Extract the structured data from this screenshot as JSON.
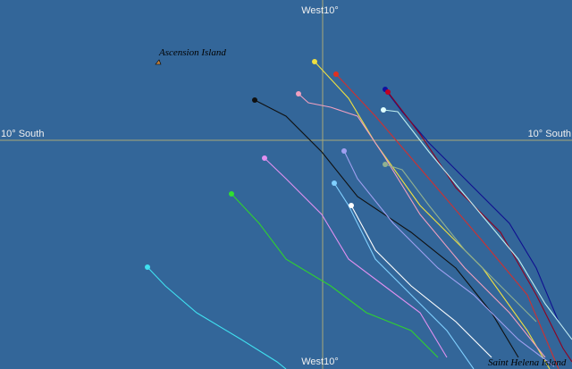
{
  "grid_labels": {
    "top_meridian": "West10°",
    "bottom_meridian": "West10°",
    "left_parallel": "10° South",
    "right_parallel": "10° South"
  },
  "places": [
    {
      "name": "Ascension Island"
    },
    {
      "name": "Saint Helena Island"
    }
  ]
}
